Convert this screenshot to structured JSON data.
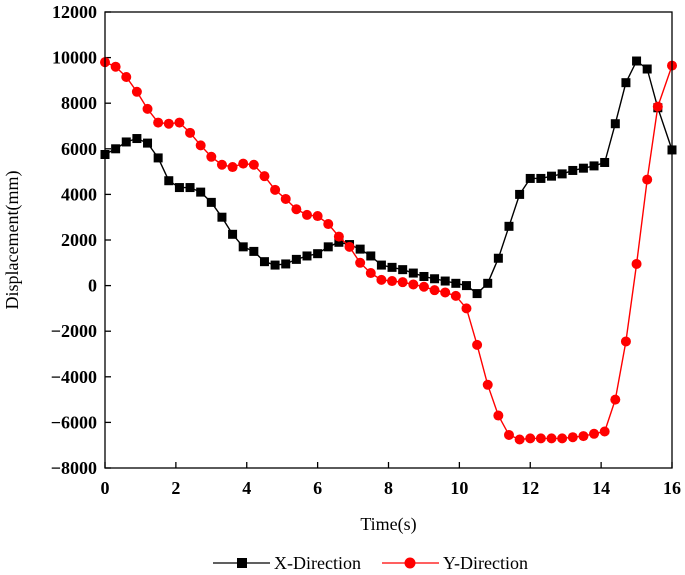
{
  "chart_data": {
    "type": "line",
    "title": "",
    "xlabel": "Time(s)",
    "ylabel": "Displacement(mm)",
    "xlim": [
      0,
      16
    ],
    "ylim": [
      -8000,
      12000
    ],
    "xticks": [
      0,
      2,
      4,
      6,
      8,
      10,
      12,
      14,
      16
    ],
    "yticks": [
      -8000,
      -6000,
      -4000,
      -2000,
      0,
      2000,
      4000,
      6000,
      8000,
      10000,
      12000
    ],
    "legend_position": "bottom-center",
    "series": [
      {
        "name": "X-Direction",
        "color": "#000000",
        "marker": "square",
        "x": [
          0,
          0.3,
          0.6,
          0.9,
          1.2,
          1.5,
          1.8,
          2.1,
          2.4,
          2.7,
          3.0,
          3.3,
          3.6,
          3.9,
          4.2,
          4.5,
          4.8,
          5.1,
          5.4,
          5.7,
          6.0,
          6.3,
          6.6,
          6.9,
          7.2,
          7.5,
          7.8,
          8.1,
          8.4,
          8.7,
          9.0,
          9.3,
          9.6,
          9.9,
          10.2,
          10.5,
          10.8,
          11.1,
          11.4,
          11.7,
          12.0,
          12.3,
          12.6,
          12.9,
          13.2,
          13.5,
          13.8,
          14.1,
          14.4,
          14.7,
          15.0,
          15.3,
          15.6,
          16.0
        ],
        "values": [
          5750,
          6000,
          6300,
          6450,
          6250,
          5600,
          4600,
          4300,
          4300,
          4100,
          3650,
          3000,
          2250,
          1700,
          1500,
          1050,
          900,
          950,
          1150,
          1300,
          1400,
          1700,
          1900,
          1800,
          1600,
          1300,
          900,
          800,
          700,
          550,
          400,
          300,
          200,
          100,
          0,
          -350,
          100,
          1200,
          2600,
          4000,
          4700,
          4700,
          4800,
          4900,
          5050,
          5150,
          5250,
          5400,
          7100,
          8900,
          9850,
          9500,
          7800,
          5950
        ]
      },
      {
        "name": "Y-Direction",
        "color": "#ff0000",
        "marker": "circle",
        "x": [
          0,
          0.3,
          0.6,
          0.9,
          1.2,
          1.5,
          1.8,
          2.1,
          2.4,
          2.7,
          3.0,
          3.3,
          3.6,
          3.9,
          4.2,
          4.5,
          4.8,
          5.1,
          5.4,
          5.7,
          6.0,
          6.3,
          6.6,
          6.9,
          7.2,
          7.5,
          7.8,
          8.1,
          8.4,
          8.7,
          9.0,
          9.3,
          9.6,
          9.9,
          10.2,
          10.5,
          10.8,
          11.1,
          11.4,
          11.7,
          12.0,
          12.3,
          12.6,
          12.9,
          13.2,
          13.5,
          13.8,
          14.1,
          14.4,
          14.7,
          15.0,
          15.3,
          15.6,
          16.0
        ],
        "values": [
          9800,
          9600,
          9150,
          8500,
          7750,
          7150,
          7100,
          7150,
          6700,
          6150,
          5650,
          5300,
          5200,
          5350,
          5300,
          4800,
          4200,
          3800,
          3350,
          3100,
          3050,
          2700,
          2150,
          1700,
          1000,
          550,
          250,
          200,
          150,
          50,
          -50,
          -200,
          -300,
          -450,
          -1000,
          -2600,
          -4350,
          -5700,
          -6550,
          -6750,
          -6700,
          -6700,
          -6700,
          -6700,
          -6650,
          -6600,
          -6500,
          -6400,
          -5000,
          -2450,
          950,
          4650,
          7850,
          9650
        ]
      }
    ]
  }
}
